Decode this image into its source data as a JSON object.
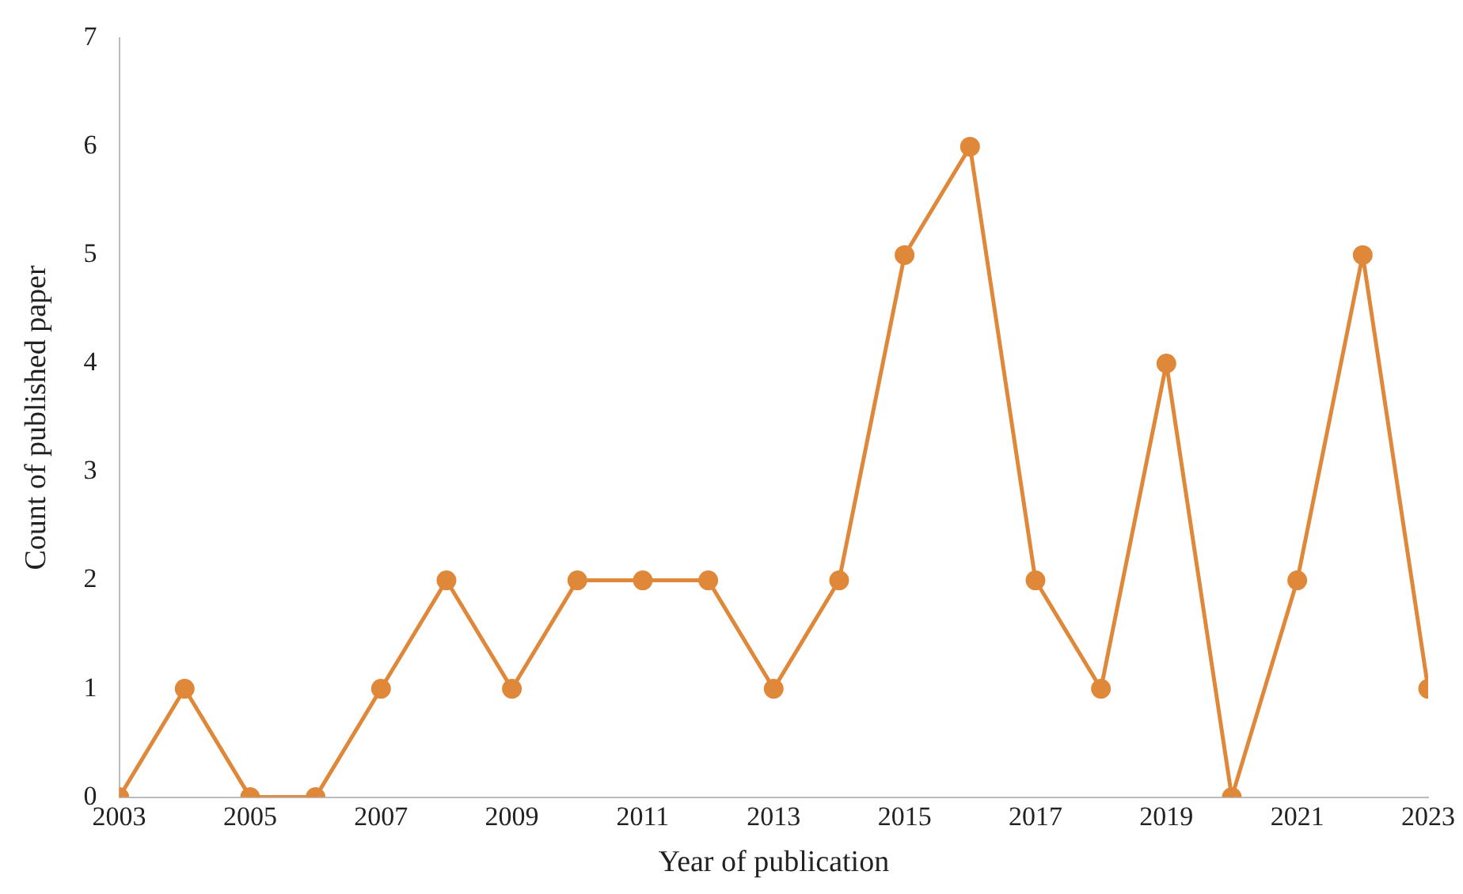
{
  "chart_data": {
    "type": "line",
    "xlabel": "Year of publication",
    "ylabel": "Count of published paper",
    "x": [
      2003,
      2004,
      2005,
      2006,
      2007,
      2008,
      2009,
      2010,
      2011,
      2012,
      2013,
      2014,
      2015,
      2016,
      2017,
      2018,
      2019,
      2020,
      2021,
      2022,
      2023
    ],
    "series": [
      {
        "color": "#e0883a",
        "values": [
          0,
          1,
          0,
          0,
          1,
          2,
          1,
          2,
          2,
          2,
          1,
          2,
          5,
          6,
          2,
          1,
          4,
          0,
          2,
          5,
          1
        ]
      }
    ],
    "xlim": [
      2003,
      2023
    ],
    "xticks": [
      2003,
      2005,
      2007,
      2009,
      2011,
      2013,
      2015,
      2017,
      2019,
      2021,
      2023
    ],
    "ylim": [
      0,
      7
    ],
    "yticks": [
      0,
      1,
      2,
      3,
      4,
      5,
      6,
      7
    ],
    "grid": false,
    "legend": false,
    "marker": "circle",
    "line_style": "solid"
  }
}
